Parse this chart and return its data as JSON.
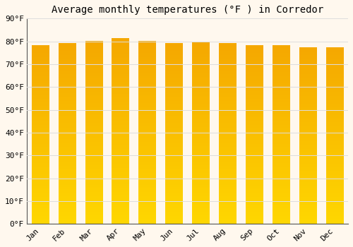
{
  "title": "Average monthly temperatures (°F ) in Corredor",
  "months": [
    "Jan",
    "Feb",
    "Mar",
    "Apr",
    "May",
    "Jun",
    "Jul",
    "Aug",
    "Sep",
    "Oct",
    "Nov",
    "Dec"
  ],
  "values": [
    78,
    79,
    80,
    81,
    80,
    79,
    79.5,
    79,
    78,
    78,
    77,
    77
  ],
  "ylim": [
    0,
    90
  ],
  "yticks": [
    0,
    10,
    20,
    30,
    40,
    50,
    60,
    70,
    80,
    90
  ],
  "ytick_labels": [
    "0°F",
    "10°F",
    "20°F",
    "30°F",
    "40°F",
    "50°F",
    "60°F",
    "70°F",
    "80°F",
    "90°F"
  ],
  "bar_color_bottom": "#FFD700",
  "bar_color_top": "#F5A800",
  "background_color": "#FFF8EE",
  "grid_color": "#DDDDDD",
  "title_fontsize": 10,
  "tick_fontsize": 8,
  "bar_width": 0.65,
  "n_grad": 200
}
